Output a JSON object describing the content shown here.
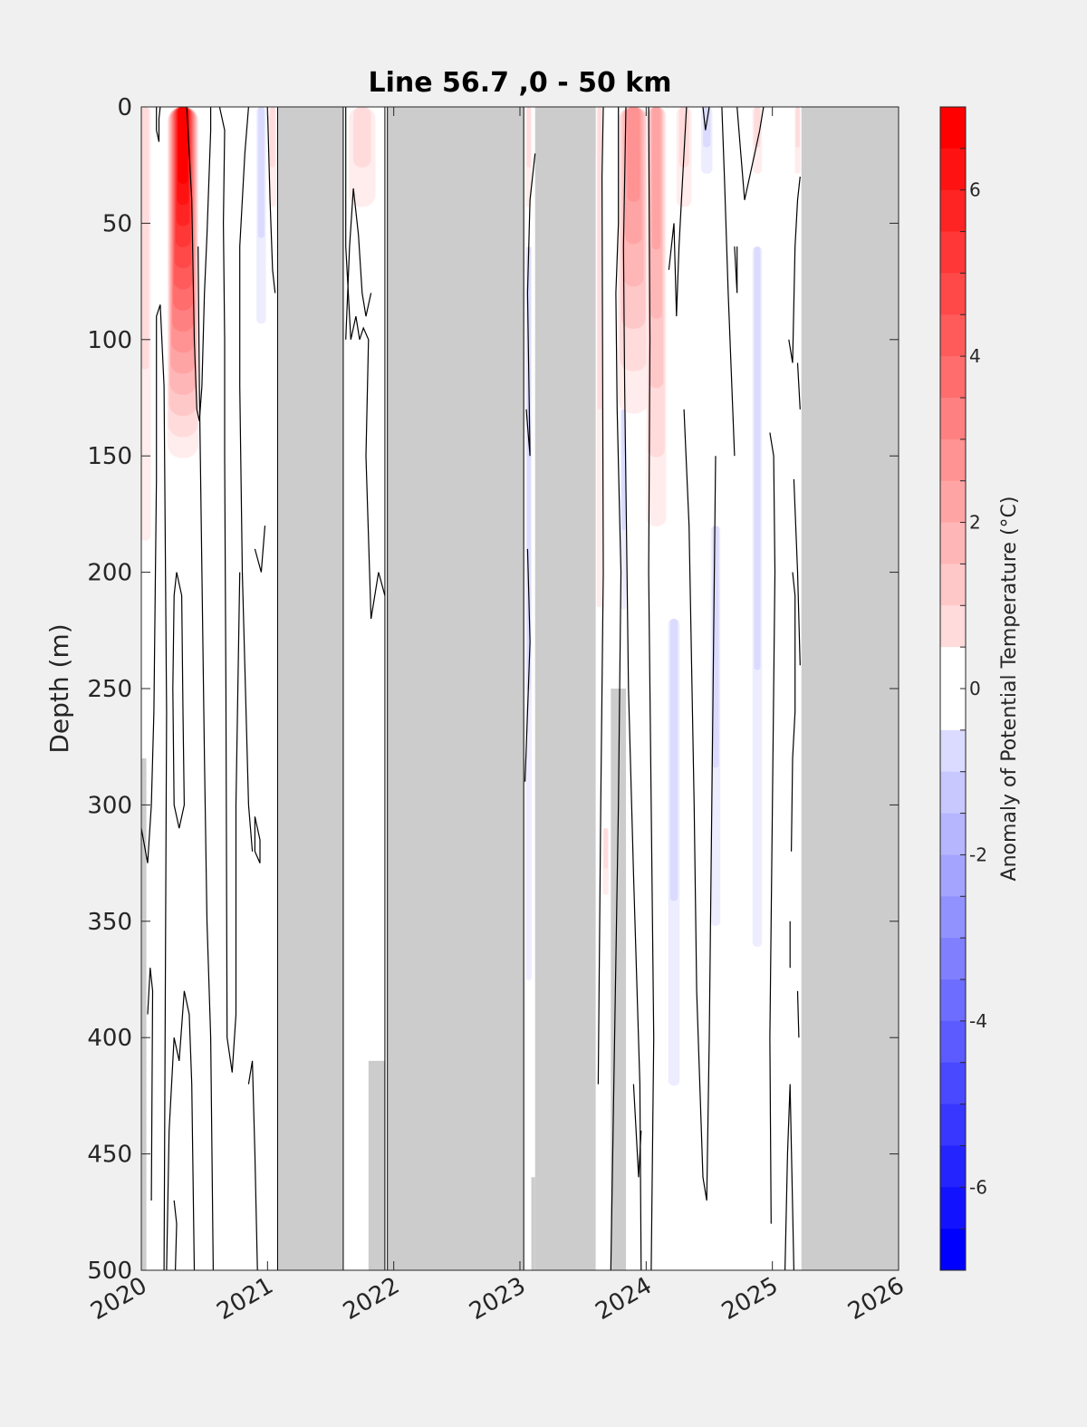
{
  "chart_data": {
    "type": "heatmap",
    "title": "Line 56.7 ,0 - 50 km",
    "xlabel": "",
    "ylabel": "Depth (m)",
    "x_domain": [
      2020,
      2026
    ],
    "y_domain": [
      0,
      500
    ],
    "y_reversed": true,
    "x_ticks": [
      "2020",
      "2021",
      "2022",
      "2023",
      "2024",
      "2025",
      "2026"
    ],
    "y_ticks": [
      "0",
      "50",
      "100",
      "150",
      "200",
      "250",
      "300",
      "350",
      "400",
      "450",
      "500"
    ],
    "colorbar": {
      "label": "Anomaly of Potential Temperature (°C)",
      "range": [
        -7,
        7
      ],
      "step": 0.5,
      "ticks": [
        "-6",
        "-4",
        "-2",
        "0",
        "2",
        "4",
        "6"
      ],
      "tick_values": [
        -6,
        -4,
        -2,
        0,
        2,
        4,
        6
      ],
      "positive_color": "#ff0000",
      "negative_color": "#0000ff",
      "zero_color": "#ffffff"
    },
    "no_data_color": "#cccccc",
    "no_data_periods": [
      {
        "x": [
          2021.08,
          2021.6
        ],
        "depth": [
          0,
          500
        ]
      },
      {
        "x": [
          2021.95,
          2023.03
        ],
        "depth": [
          0,
          500
        ]
      },
      {
        "x": [
          2023.12,
          2023.6
        ],
        "depth": [
          0,
          500
        ]
      },
      {
        "x": [
          2025.23,
          2026.0
        ],
        "depth": [
          0,
          500
        ]
      },
      {
        "x": [
          2021.8,
          2021.93
        ],
        "depth": [
          410,
          500
        ]
      },
      {
        "x": [
          2023.09,
          2023.12
        ],
        "depth": [
          460,
          500
        ]
      },
      {
        "x": [
          2023.72,
          2023.84
        ],
        "depth": [
          250,
          500
        ]
      },
      {
        "x": [
          2020.0,
          2020.04
        ],
        "depth": [
          280,
          500
        ]
      }
    ],
    "survey_lines": [
      2021.08,
      2021.6,
      2021.93,
      2021.95,
      2023.03
    ],
    "anomaly_features": [
      {
        "x": 2020.33,
        "x_halfwidth": 0.13,
        "depth": [
          0,
          160
        ],
        "peak": 6.8
      },
      {
        "x": 2020.03,
        "x_halfwidth": 0.06,
        "depth": [
          0,
          260
        ],
        "peak": 1.2
      },
      {
        "x": 2021.04,
        "x_halfwidth": 0.04,
        "depth": [
          0,
          60
        ],
        "peak": 0.8
      },
      {
        "x": 2020.95,
        "x_halfwidth": 0.05,
        "depth": [
          0,
          130
        ],
        "peak": -1.0
      },
      {
        "x": 2021.75,
        "x_halfwidth": 0.14,
        "depth": [
          0,
          60
        ],
        "peak": 0.8
      },
      {
        "x": 2023.07,
        "x_halfwidth": 0.03,
        "depth": [
          0,
          60
        ],
        "peak": 0.8
      },
      {
        "x": 2023.07,
        "x_halfwidth": 0.03,
        "depth": [
          60,
          500
        ],
        "peak": -0.8
      },
      {
        "x": 2023.9,
        "x_halfwidth": 0.14,
        "depth": [
          0,
          150
        ],
        "peak": 3.2
      },
      {
        "x": 2024.08,
        "x_halfwidth": 0.09,
        "depth": [
          0,
          210
        ],
        "peak": 2.4
      },
      {
        "x": 2024.3,
        "x_halfwidth": 0.08,
        "depth": [
          0,
          60
        ],
        "peak": 1.0
      },
      {
        "x": 2023.63,
        "x_halfwidth": 0.03,
        "depth": [
          0,
          300
        ],
        "peak": 0.8
      },
      {
        "x": 2023.82,
        "x_halfwidth": 0.03,
        "depth": [
          130,
          250
        ],
        "peak": -1.0
      },
      {
        "x": 2023.68,
        "x_halfwidth": 0.03,
        "depth": [
          310,
          350
        ],
        "peak": 0.8
      },
      {
        "x": 2024.22,
        "x_halfwidth": 0.06,
        "depth": [
          220,
          500
        ],
        "peak": -1.0
      },
      {
        "x": 2024.55,
        "x_halfwidth": 0.05,
        "depth": [
          180,
          420
        ],
        "peak": -0.8
      },
      {
        "x": 2024.48,
        "x_halfwidth": 0.06,
        "depth": [
          0,
          40
        ],
        "peak": -0.8
      },
      {
        "x": 2024.88,
        "x_halfwidth": 0.05,
        "depth": [
          60,
          480
        ],
        "peak": -0.8
      },
      {
        "x": 2024.88,
        "x_halfwidth": 0.05,
        "depth": [
          0,
          40
        ],
        "peak": 1.0
      },
      {
        "x": 2025.2,
        "x_halfwidth": 0.03,
        "depth": [
          0,
          40
        ],
        "peak": 1.0
      },
      {
        "x": 2023.58,
        "x_halfwidth": 0.03,
        "depth": [
          0,
          30
        ],
        "peak": -1.0
      }
    ],
    "contour_level": 0,
    "contours": [
      [
        [
          2020.12,
          0
        ],
        [
          2020.12,
          10
        ],
        [
          2020.14,
          15
        ],
        [
          2020.14,
          5
        ],
        [
          2020.15,
          0
        ]
      ],
      [
        [
          2020.0,
          310
        ],
        [
          2020.05,
          325
        ],
        [
          2020.08,
          300
        ],
        [
          2020.1,
          260
        ],
        [
          2020.12,
          160
        ],
        [
          2020.12,
          90
        ],
        [
          2020.15,
          85
        ],
        [
          2020.18,
          120
        ],
        [
          2020.2,
          260
        ],
        [
          2020.18,
          500
        ]
      ],
      [
        [
          2020.05,
          390
        ],
        [
          2020.07,
          370
        ],
        [
          2020.09,
          380
        ],
        [
          2020.08,
          470
        ]
      ],
      [
        [
          2020.36,
          0
        ],
        [
          2020.4,
          40
        ],
        [
          2020.42,
          100
        ],
        [
          2020.44,
          130
        ],
        [
          2020.46,
          135
        ],
        [
          2020.48,
          120
        ],
        [
          2020.5,
          80
        ],
        [
          2020.52,
          55
        ],
        [
          2020.55,
          10
        ],
        [
          2020.55,
          0
        ]
      ],
      [
        [
          2020.45,
          60
        ],
        [
          2020.46,
          120
        ],
        [
          2020.48,
          200
        ],
        [
          2020.5,
          280
        ],
        [
          2020.52,
          350
        ],
        [
          2020.55,
          400
        ],
        [
          2020.57,
          500
        ]
      ],
      [
        [
          2020.62,
          0
        ],
        [
          2020.66,
          10
        ],
        [
          2020.65,
          50
        ],
        [
          2020.66,
          100
        ],
        [
          2020.66,
          150
        ],
        [
          2020.67,
          250
        ],
        [
          2020.68,
          400
        ],
        [
          2020.72,
          415
        ],
        [
          2020.75,
          390
        ],
        [
          2020.75,
          300
        ],
        [
          2020.78,
          200
        ]
      ],
      [
        [
          2020.85,
          0
        ],
        [
          2020.82,
          20
        ],
        [
          2020.78,
          60
        ],
        [
          2020.78,
          120
        ],
        [
          2020.8,
          200
        ],
        [
          2020.85,
          300
        ],
        [
          2020.88,
          320
        ]
      ],
      [
        [
          2021.0,
          0
        ],
        [
          2021.02,
          40
        ],
        [
          2021.04,
          70
        ],
        [
          2021.06,
          80
        ]
      ],
      [
        [
          2020.9,
          190
        ],
        [
          2020.95,
          200
        ],
        [
          2020.98,
          180
        ]
      ],
      [
        [
          2020.28,
          200
        ],
        [
          2020.32,
          210
        ],
        [
          2020.33,
          260
        ],
        [
          2020.34,
          300
        ],
        [
          2020.3,
          310
        ],
        [
          2020.26,
          300
        ],
        [
          2020.25,
          250
        ],
        [
          2020.26,
          210
        ],
        [
          2020.28,
          200
        ]
      ],
      [
        [
          2020.2,
          500
        ],
        [
          2020.22,
          440
        ],
        [
          2020.26,
          400
        ],
        [
          2020.3,
          410
        ],
        [
          2020.32,
          395
        ],
        [
          2020.34,
          380
        ],
        [
          2020.38,
          390
        ],
        [
          2020.4,
          420
        ],
        [
          2020.42,
          500
        ]
      ],
      [
        [
          2020.26,
          470
        ],
        [
          2020.28,
          480
        ],
        [
          2020.27,
          500
        ]
      ],
      [
        [
          2020.85,
          420
        ],
        [
          2020.88,
          410
        ],
        [
          2020.9,
          450
        ],
        [
          2020.92,
          500
        ]
      ],
      [
        [
          2020.9,
          305
        ],
        [
          2020.94,
          315
        ],
        [
          2020.94,
          325
        ],
        [
          2020.9,
          320
        ],
        [
          2020.9,
          305
        ]
      ],
      [
        [
          2021.62,
          100
        ],
        [
          2021.65,
          60
        ],
        [
          2021.68,
          35
        ],
        [
          2021.72,
          55
        ],
        [
          2021.75,
          80
        ],
        [
          2021.78,
          90
        ],
        [
          2021.82,
          80
        ]
      ],
      [
        [
          2021.62,
          0
        ],
        [
          2021.62,
          60
        ],
        [
          2021.66,
          100
        ],
        [
          2021.7,
          90
        ],
        [
          2021.73,
          100
        ],
        [
          2021.76,
          95
        ],
        [
          2021.8,
          100
        ],
        [
          2021.78,
          150
        ],
        [
          2021.82,
          220
        ],
        [
          2021.88,
          200
        ],
        [
          2021.93,
          210
        ]
      ],
      [
        [
          2023.05,
          130
        ],
        [
          2023.08,
          150
        ],
        [
          2023.06,
          80
        ],
        [
          2023.08,
          40
        ],
        [
          2023.12,
          20
        ]
      ],
      [
        [
          2023.06,
          190
        ],
        [
          2023.07,
          210
        ],
        [
          2023.08,
          230
        ],
        [
          2023.06,
          260
        ],
        [
          2023.04,
          290
        ]
      ],
      [
        [
          2023.62,
          420
        ],
        [
          2023.64,
          300
        ],
        [
          2023.66,
          200
        ],
        [
          2023.65,
          30
        ],
        [
          2023.66,
          0
        ]
      ],
      [
        [
          2023.72,
          500
        ],
        [
          2023.75,
          400
        ],
        [
          2023.78,
          300
        ],
        [
          2023.8,
          200
        ],
        [
          2023.77,
          130
        ],
        [
          2023.76,
          80
        ],
        [
          2023.78,
          50
        ],
        [
          2023.78,
          0
        ]
      ],
      [
        [
          2023.84,
          0
        ],
        [
          2023.82,
          60
        ],
        [
          2023.83,
          120
        ],
        [
          2023.86,
          250
        ],
        [
          2023.9,
          330
        ],
        [
          2023.95,
          420
        ],
        [
          2023.96,
          500
        ]
      ],
      [
        [
          2023.9,
          420
        ],
        [
          2023.94,
          460
        ],
        [
          2023.96,
          440
        ]
      ],
      [
        [
          2024.02,
          0
        ],
        [
          2024.03,
          100
        ],
        [
          2024.02,
          200
        ],
        [
          2024.04,
          300
        ],
        [
          2024.06,
          400
        ],
        [
          2024.04,
          500
        ]
      ],
      [
        [
          2024.18,
          70
        ],
        [
          2024.22,
          50
        ],
        [
          2024.24,
          90
        ],
        [
          2024.26,
          60
        ],
        [
          2024.28,
          40
        ],
        [
          2024.3,
          20
        ],
        [
          2024.32,
          0
        ]
      ],
      [
        [
          2024.3,
          130
        ],
        [
          2024.34,
          180
        ],
        [
          2024.38,
          300
        ],
        [
          2024.4,
          380
        ],
        [
          2024.45,
          460
        ],
        [
          2024.48,
          470
        ],
        [
          2024.5,
          400
        ],
        [
          2024.52,
          300
        ],
        [
          2024.54,
          200
        ],
        [
          2024.55,
          150
        ]
      ],
      [
        [
          2024.45,
          0
        ],
        [
          2024.47,
          10
        ],
        [
          2024.5,
          0
        ]
      ],
      [
        [
          2024.6,
          0
        ],
        [
          2024.62,
          30
        ],
        [
          2024.65,
          80
        ],
        [
          2024.7,
          150
        ]
      ],
      [
        [
          2024.72,
          0
        ],
        [
          2024.75,
          20
        ],
        [
          2024.78,
          40
        ],
        [
          2024.82,
          30
        ],
        [
          2024.86,
          20
        ],
        [
          2024.9,
          10
        ],
        [
          2024.93,
          0
        ]
      ],
      [
        [
          2024.7,
          60
        ],
        [
          2024.72,
          80
        ],
        [
          2024.72,
          60
        ]
      ],
      [
        [
          2024.98,
          140
        ],
        [
          2025.01,
          150
        ],
        [
          2025.02,
          200
        ],
        [
          2025.0,
          300
        ],
        [
          2024.98,
          400
        ],
        [
          2024.99,
          480
        ]
      ],
      [
        [
          2025.1,
          500
        ],
        [
          2025.12,
          450
        ],
        [
          2025.14,
          420
        ],
        [
          2025.17,
          500
        ]
      ],
      [
        [
          2025.13,
          100
        ],
        [
          2025.16,
          110
        ],
        [
          2025.18,
          60
        ],
        [
          2025.2,
          40
        ],
        [
          2025.22,
          30
        ]
      ],
      [
        [
          2025.16,
          200
        ],
        [
          2025.18,
          210
        ],
        [
          2025.18,
          260
        ],
        [
          2025.16,
          280
        ],
        [
          2025.15,
          320
        ]
      ],
      [
        [
          2025.17,
          160
        ],
        [
          2025.2,
          200
        ],
        [
          2025.22,
          240
        ]
      ],
      [
        [
          2025.14,
          350
        ],
        [
          2025.14,
          370
        ]
      ],
      [
        [
          2025.2,
          110
        ],
        [
          2025.22,
          130
        ]
      ],
      [
        [
          2025.2,
          380
        ],
        [
          2025.21,
          400
        ]
      ]
    ]
  }
}
